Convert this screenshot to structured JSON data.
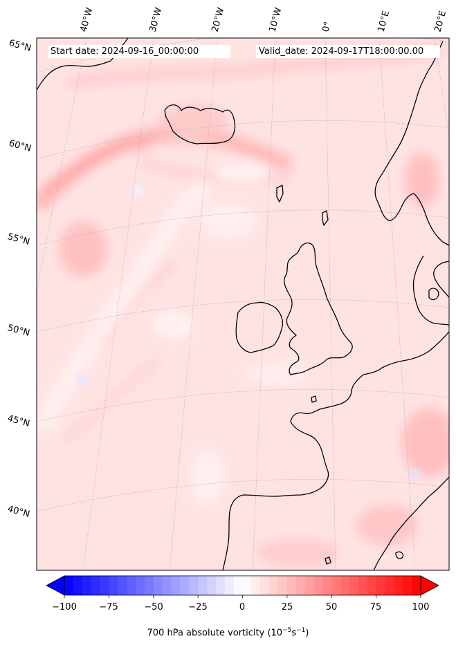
{
  "map": {
    "header": {
      "start": "Start date: 2024-09-16_00:00:00",
      "valid": "Valid_date: 2024-09-17T18:00:00.00"
    },
    "lon_labels": [
      "40°W",
      "30°W",
      "20°W",
      "10°W",
      "0°",
      "10°E",
      "20°E"
    ],
    "lat_labels": [
      "65°N",
      "60°N",
      "55°N",
      "50°N",
      "45°N",
      "40°N"
    ],
    "colors": {
      "background_field": "#ffe3e3",
      "coastline": "#000000",
      "gridline": "#aaaaaa"
    }
  },
  "colorbar": {
    "label_prefix": "700 hPa absolute vorticity (10",
    "label_exp1": "−5",
    "label_mid": "s",
    "label_exp2": "−1",
    "label_suffix": ")",
    "ticks": [
      "−100",
      "−75",
      "−50",
      "−25",
      "0",
      "25",
      "50",
      "75",
      "100"
    ],
    "min": -100,
    "max": 100,
    "levels": 41,
    "colors": {
      "low": "#0000ff",
      "mid": "#ffffff",
      "high": "#ff0000"
    }
  }
}
